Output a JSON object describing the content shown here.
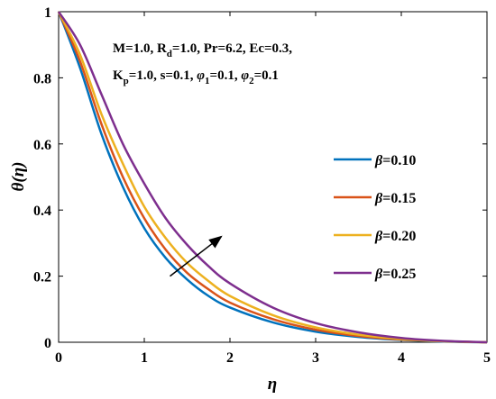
{
  "chart_data": {
    "type": "line",
    "xlabel": "η",
    "ylabel": "θ(η)",
    "xlim": [
      0,
      5
    ],
    "ylim": [
      0,
      1
    ],
    "xticks": [
      "0",
      "1",
      "2",
      "3",
      "4",
      "5"
    ],
    "yticks": [
      "0",
      "0.2",
      "0.4",
      "0.6",
      "0.8",
      "1"
    ],
    "annotation": {
      "line1": "M=1.0, R_d=1.0, Pr=6.2, Ec=0.3,",
      "line2": "K_p=1.0, s=0.1, φ_1=0.1, φ_2=0.1",
      "l1_a": "M=1.0, R",
      "l1_sub": "d",
      "l1_b": "=1.0, Pr=6.2, Ec=0.3,",
      "l2_a": "K",
      "l2_sub1": "p",
      "l2_b": "=1.0, s=0.1, ",
      "l2_phi1": "φ",
      "l2_sub2": "1",
      "l2_c": "=0.1, ",
      "l2_phi2": "φ",
      "l2_sub3": "2",
      "l2_d": "=0.1"
    },
    "legend_position": "right",
    "arrow": {
      "from": [
        1.3,
        0.2
      ],
      "to": [
        1.9,
        0.32
      ],
      "meaning": "increasing β"
    },
    "x": [
      0,
      0.25,
      0.5,
      0.75,
      1.0,
      1.25,
      1.5,
      1.75,
      2.0,
      2.5,
      3.0,
      3.5,
      4.0,
      4.5,
      5.0
    ],
    "series": [
      {
        "name": "β=0.10",
        "color": "#0072BD",
        "values": [
          1.0,
          0.83,
          0.63,
          0.47,
          0.345,
          0.255,
          0.19,
          0.14,
          0.105,
          0.06,
          0.032,
          0.016,
          0.007,
          0.002,
          0.0
        ]
      },
      {
        "name": "β=0.15",
        "color": "#D95319",
        "values": [
          1.0,
          0.85,
          0.66,
          0.5,
          0.375,
          0.28,
          0.21,
          0.16,
          0.12,
          0.07,
          0.038,
          0.019,
          0.008,
          0.003,
          0.0
        ]
      },
      {
        "name": "β=0.20",
        "color": "#EDB120",
        "values": [
          1.0,
          0.87,
          0.69,
          0.54,
          0.41,
          0.315,
          0.24,
          0.185,
          0.14,
          0.082,
          0.045,
          0.023,
          0.01,
          0.003,
          0.0
        ]
      },
      {
        "name": "β=0.25",
        "color": "#7E2F8E",
        "values": [
          1.0,
          0.9,
          0.75,
          0.6,
          0.48,
          0.375,
          0.295,
          0.23,
          0.178,
          0.105,
          0.058,
          0.03,
          0.013,
          0.004,
          0.0
        ]
      }
    ]
  }
}
